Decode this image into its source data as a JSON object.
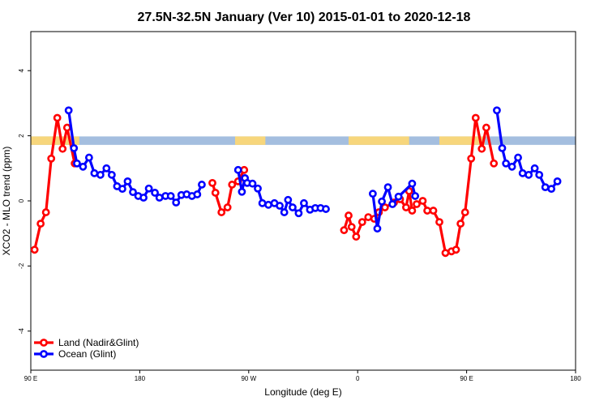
{
  "chart_data": {
    "type": "line",
    "title": "27.5N-32.5N January (Ver 10)   2015-01-01 to 2020-12-18",
    "xlabel": "Longitude (deg E)",
    "ylabel": "XCO2 - MLO trend (ppm)",
    "xlim": [
      -90,
      270
    ],
    "ylim": [
      -5.2,
      5.2
    ],
    "x_ticks": [
      {
        "value": -90,
        "label": "90 E"
      },
      {
        "value": -18,
        "label": "180"
      },
      {
        "value": 54,
        "label": "90 W"
      },
      {
        "value": 126,
        "label": "0"
      },
      {
        "value": 198,
        "label": "90 E"
      },
      {
        "value": 270,
        "label": "180"
      }
    ],
    "y_ticks": [
      {
        "value": -4,
        "label": "-4"
      },
      {
        "value": -2,
        "label": "-2"
      },
      {
        "value": 0,
        "label": "0"
      },
      {
        "value": 2,
        "label": "2"
      },
      {
        "value": 4,
        "label": "4"
      }
    ],
    "legend_position": "bottom-left",
    "surface_band": {
      "y_range": [
        1.72,
        1.98
      ],
      "ocean_color": "#a4bedf",
      "land_color": "#f7d67c",
      "land_segments": [
        [
          -90,
          -58
        ],
        [
          45,
          65
        ],
        [
          120,
          160
        ],
        [
          180,
          210
        ]
      ]
    },
    "series": [
      {
        "name": "Land (Nadir&Glint)",
        "color": "#ff0000",
        "segments": [
          [
            [
              -87.5,
              -1.5
            ],
            [
              -83.5,
              -0.7
            ],
            [
              -80,
              -0.35
            ],
            [
              -76.5,
              1.3
            ],
            [
              -72.5,
              2.55
            ],
            [
              -69,
              1.6
            ],
            [
              -66,
              2.25
            ],
            [
              -61,
              1.15
            ]
          ],
          [
            [
              30,
              0.55
            ],
            [
              32,
              0.25
            ],
            [
              36,
              -0.35
            ],
            [
              40,
              -0.2
            ],
            [
              43,
              0.5
            ],
            [
              47,
              0.6
            ],
            [
              51,
              0.95
            ]
          ],
          [
            [
              117,
              -0.9
            ],
            [
              120,
              -0.45
            ],
            [
              122,
              -0.8
            ],
            [
              125,
              -1.1
            ],
            [
              129,
              -0.65
            ],
            [
              133,
              -0.5
            ],
            [
              137,
              -0.55
            ],
            [
              140,
              -0.35
            ],
            [
              144,
              -0.2
            ],
            [
              150,
              -0.05
            ],
            [
              154,
              0.05
            ],
            [
              158,
              -0.2
            ],
            [
              160,
              0.3
            ],
            [
              162,
              -0.3
            ],
            [
              165,
              -0.1
            ],
            [
              169,
              0
            ],
            [
              172,
              -0.3
            ],
            [
              176,
              -0.3
            ],
            [
              180,
              -0.65
            ],
            [
              184,
              -1.6
            ],
            [
              188,
              -1.55
            ],
            [
              191,
              -1.5
            ],
            [
              194,
              -0.7
            ],
            [
              197,
              -0.35
            ],
            [
              201,
              1.3
            ],
            [
              204,
              2.55
            ],
            [
              208,
              1.6
            ],
            [
              211,
              2.25
            ],
            [
              216,
              1.15
            ]
          ]
        ]
      },
      {
        "name": "Ocean (Glint)",
        "color": "#0000ff",
        "segments": [
          [
            [
              -65,
              2.78
            ],
            [
              -61.5,
              1.62
            ],
            [
              -59.5,
              1.15
            ],
            [
              -55.5,
              1.05
            ],
            [
              -51.5,
              1.33
            ],
            [
              -48,
              0.85
            ],
            [
              -44,
              0.8
            ],
            [
              -40,
              1.0
            ],
            [
              -36.5,
              0.8
            ],
            [
              -33,
              0.45
            ],
            [
              -29.5,
              0.37
            ],
            [
              -26,
              0.6
            ],
            [
              -22.5,
              0.27
            ],
            [
              -19,
              0.15
            ],
            [
              -15.5,
              0.1
            ],
            [
              -12,
              0.38
            ],
            [
              -8,
              0.25
            ],
            [
              -5,
              0.1
            ],
            [
              -1,
              0.15
            ],
            [
              2.5,
              0.15
            ],
            [
              6,
              -0.05
            ],
            [
              9.5,
              0.18
            ],
            [
              13,
              0.2
            ],
            [
              16.5,
              0.15
            ],
            [
              20,
              0.2
            ],
            [
              23,
              0.5
            ]
          ],
          [
            [
              47,
              0.95
            ],
            [
              49.5,
              0.28
            ],
            [
              51.5,
              0.7
            ],
            [
              53,
              0.55
            ],
            [
              56.5,
              0.53
            ],
            [
              60,
              0.38
            ],
            [
              63,
              -0.07
            ],
            [
              67,
              -0.12
            ],
            [
              71,
              -0.07
            ],
            [
              74.5,
              -0.15
            ],
            [
              77.5,
              -0.35
            ],
            [
              80,
              0.03
            ],
            [
              83,
              -0.2
            ],
            [
              87,
              -0.38
            ],
            [
              90.5,
              -0.07
            ],
            [
              94.5,
              -0.27
            ],
            [
              98,
              -0.22
            ],
            [
              101.5,
              -0.22
            ],
            [
              105,
              -0.25
            ]
          ],
          [
            [
              136,
              0.22
            ],
            [
              139,
              -0.85
            ],
            [
              142,
              -0.02
            ],
            [
              146,
              0.42
            ],
            [
              149,
              -0.1
            ],
            [
              153,
              0.13
            ],
            [
              162,
              0.53
            ],
            [
              164,
              0.15
            ]
          ],
          [
            [
              218,
              2.78
            ],
            [
              221.5,
              1.62
            ],
            [
              224,
              1.15
            ],
            [
              228,
              1.05
            ],
            [
              232,
              1.33
            ],
            [
              235,
              0.85
            ],
            [
              239,
              0.8
            ],
            [
              243,
              1.0
            ],
            [
              246,
              0.8
            ],
            [
              250,
              0.42
            ],
            [
              254,
              0.37
            ],
            [
              258,
              0.6
            ]
          ]
        ]
      }
    ]
  }
}
